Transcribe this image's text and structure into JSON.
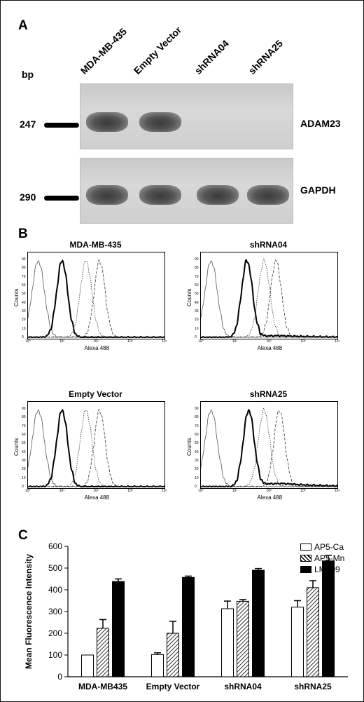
{
  "panel_a": {
    "letter": "A",
    "bp_label": "bp",
    "lanes": [
      "MDA-MB-435",
      "Empty Vector",
      "shRNA04",
      "shRNA25"
    ],
    "gels": [
      {
        "marker": "247",
        "gene": "ADAM23",
        "bands": [
          1,
          1,
          0,
          0
        ]
      },
      {
        "marker": "290",
        "gene": "GAPDH",
        "bands": [
          1,
          1,
          1,
          1
        ]
      }
    ]
  },
  "panel_b": {
    "letter": "B",
    "y_label": "Counts",
    "x_label": "Alexa 488",
    "x_ticks": [
      "10⁰",
      "10¹",
      "10²",
      "10³",
      "10⁴"
    ],
    "y_ticks": [
      "0",
      "10",
      "20",
      "30",
      "40",
      "50",
      "60",
      "70",
      "80",
      "90"
    ],
    "histograms": [
      {
        "title": "MDA-MB-435",
        "peaks": [
          0.3,
          1.0,
          1.7,
          2.1
        ],
        "tail": 0.0
      },
      {
        "title": "shRNA04",
        "peaks": [
          0.3,
          1.35,
          1.85,
          2.2
        ],
        "tail": 0.3
      },
      {
        "title": "Empty Vector",
        "peaks": [
          0.3,
          1.0,
          1.7,
          2.1
        ],
        "tail": 0.0
      },
      {
        "title": "shRNA25",
        "peaks": [
          0.3,
          1.4,
          1.85,
          2.3
        ],
        "tail": 0.6
      }
    ]
  },
  "panel_c": {
    "letter": "C",
    "ylabel": "Mean Fluorescence Intensity",
    "ylim": [
      0,
      600
    ],
    "y_ticks": [
      "0",
      "100",
      "200",
      "300",
      "400",
      "500",
      "600"
    ]
  },
  "chart_data": {
    "type": "bar",
    "categories": [
      "MDA-MB435",
      "Empty Vector",
      "shRNA04",
      "shRNA25"
    ],
    "series": [
      {
        "name": "AP5-Ca",
        "values": [
          100,
          102,
          313,
          320
        ],
        "errors": [
          0,
          8,
          35,
          30
        ],
        "fill": "#ffffff"
      },
      {
        "name": "AP5-Mn",
        "values": [
          223,
          200,
          347,
          410
        ],
        "errors": [
          40,
          55,
          8,
          32
        ],
        "fill": "hatch"
      },
      {
        "name": "LM609",
        "values": [
          438,
          457,
          490,
          533
        ],
        "errors": [
          12,
          6,
          8,
          25
        ],
        "fill": "#000000"
      }
    ],
    "ylabel": "Mean Fluorescence Intensity",
    "xlabel": "",
    "ylim": [
      0,
      600
    ],
    "y_ticks": [
      0,
      100,
      200,
      300,
      400,
      500,
      600
    ],
    "legend": "top-right"
  }
}
